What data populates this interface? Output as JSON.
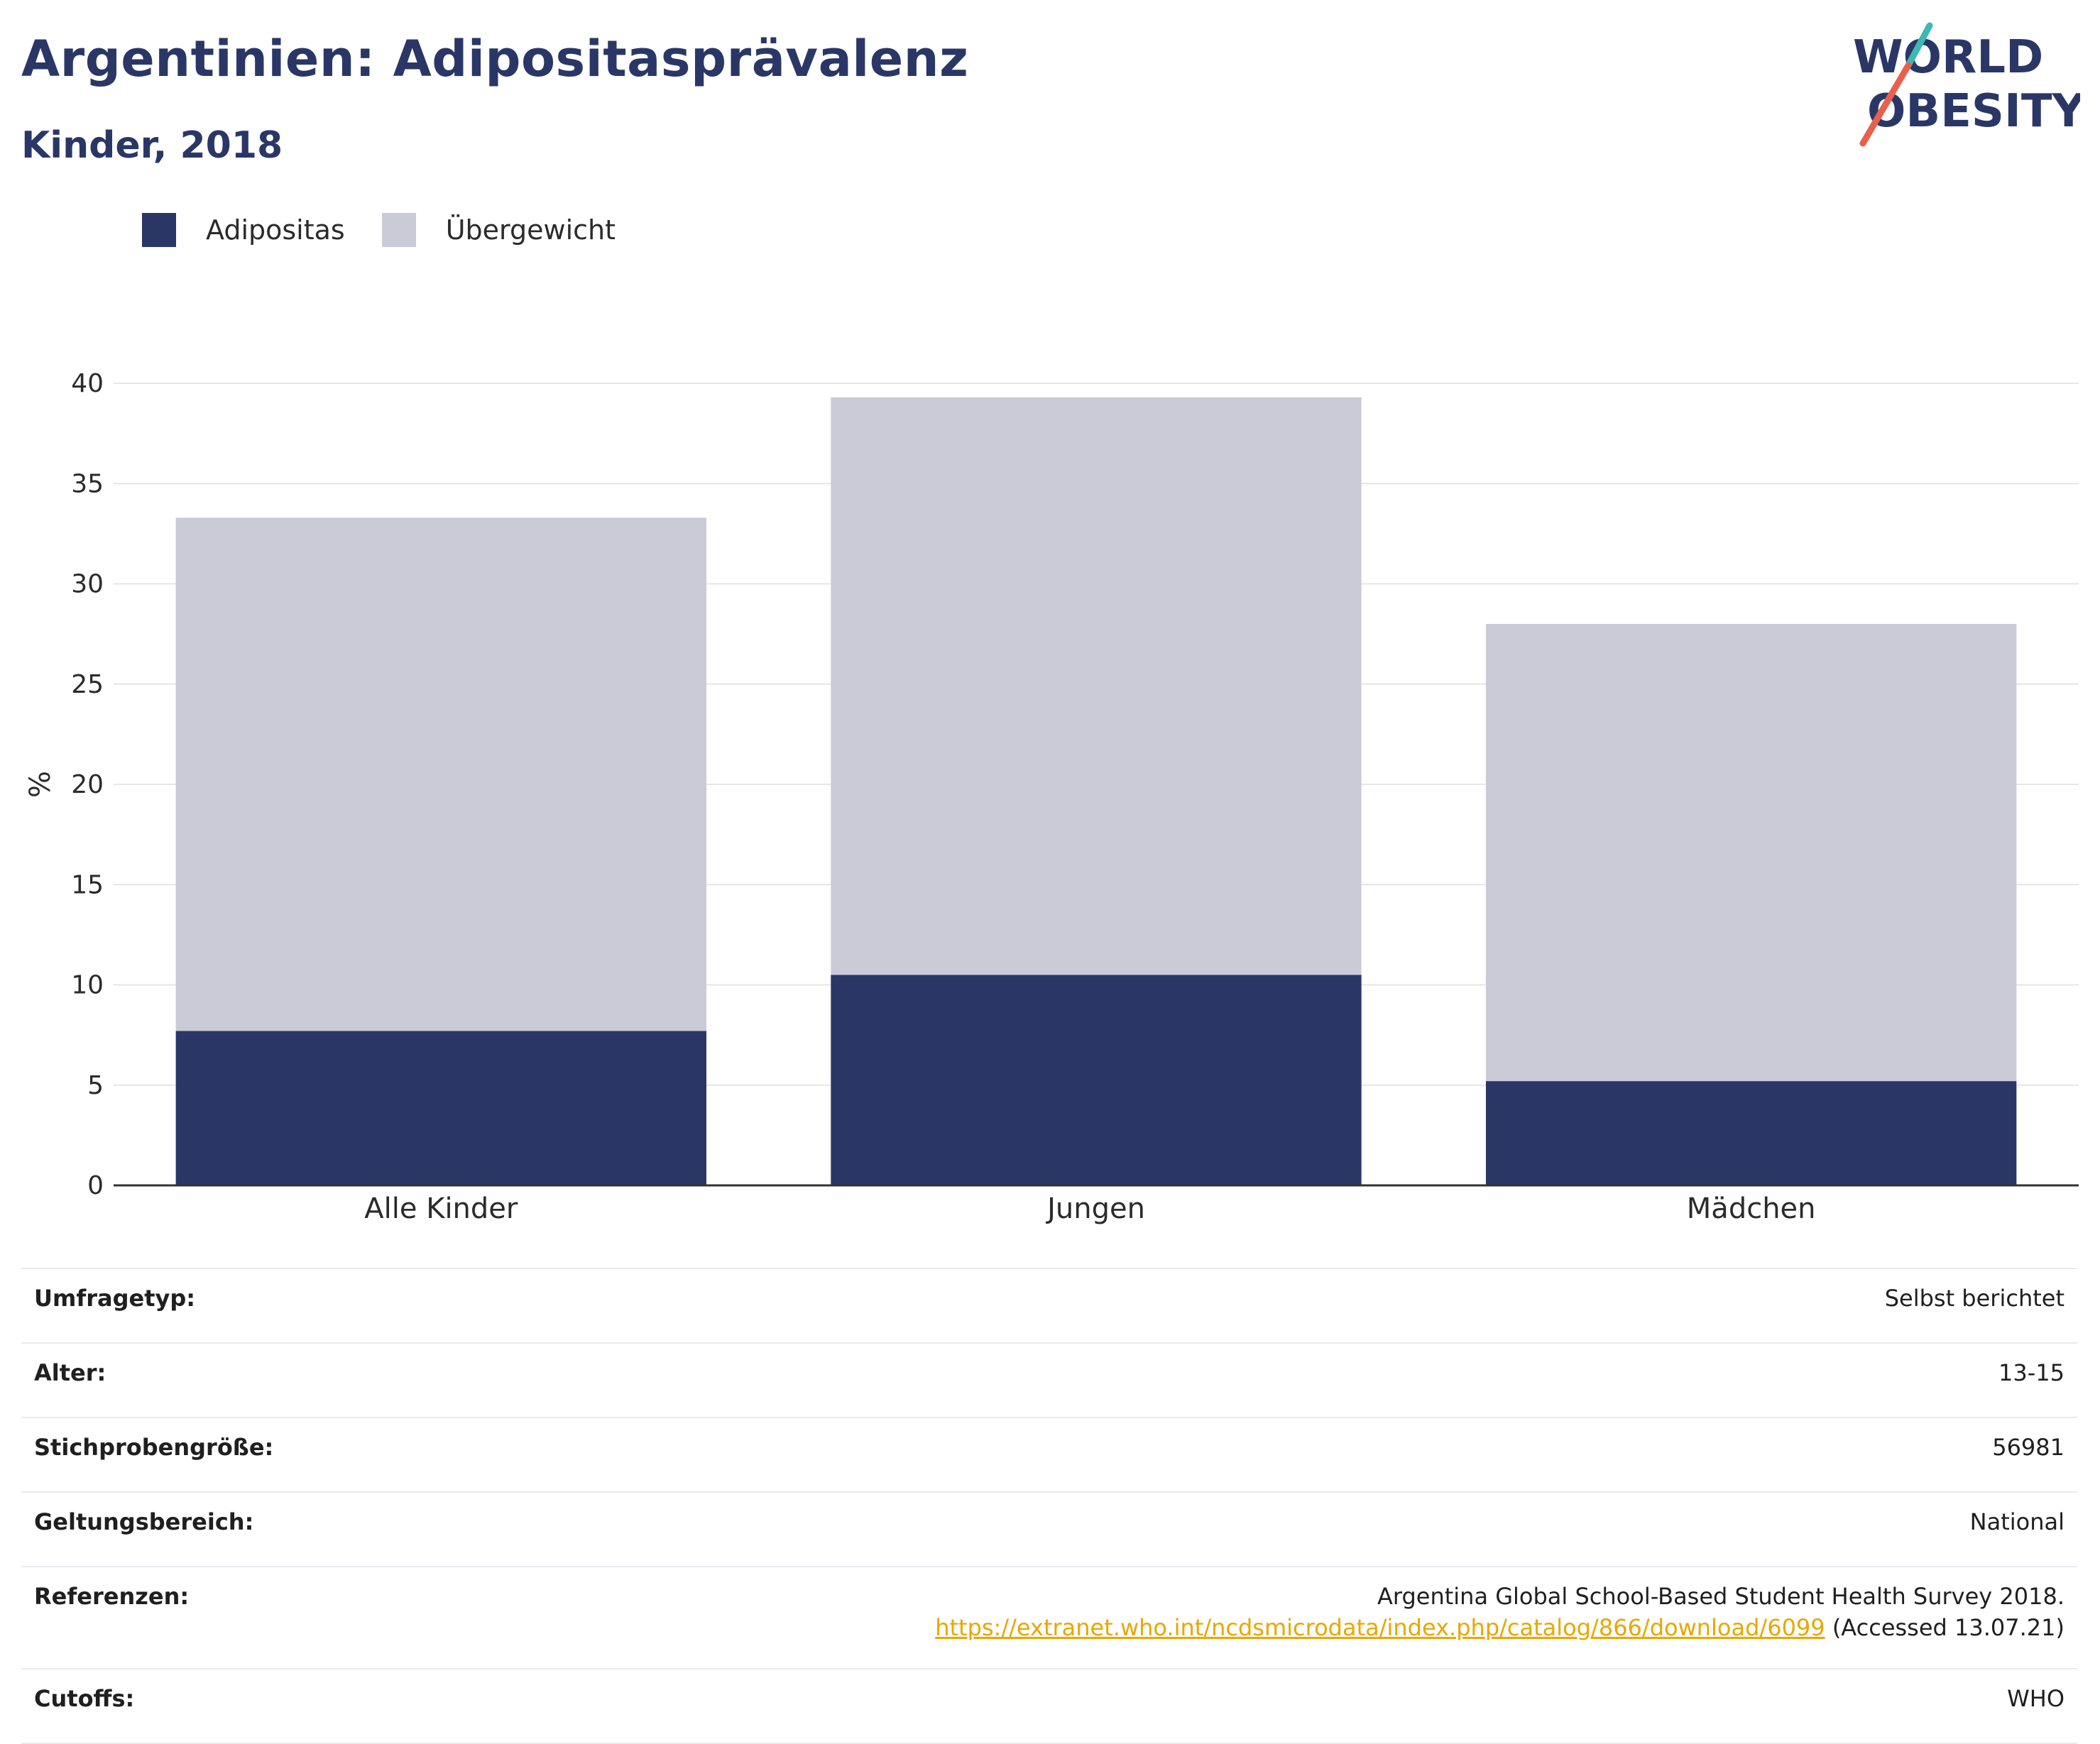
{
  "header": {
    "title": "Argentinien: Adipositasprävalenz",
    "subtitle": "Kinder, 2018"
  },
  "logo": {
    "line1": "WORLD",
    "line2": "OBESITY"
  },
  "legend": [
    {
      "label": "Adipositas",
      "color": "#2a3766"
    },
    {
      "label": "Übergewicht",
      "color": "#cacbd7"
    }
  ],
  "chart_data": {
    "type": "bar",
    "stacked": true,
    "categories": [
      "Alle Kinder",
      "Jungen",
      "Mädchen"
    ],
    "series": [
      {
        "name": "Adipositas",
        "values": [
          7.7,
          10.5,
          5.2
        ],
        "color": "#2a3766"
      },
      {
        "name": "Übergewicht",
        "values": [
          25.6,
          28.8,
          22.8
        ],
        "color": "#cacbd7"
      }
    ],
    "ylabel": "%",
    "ylim": [
      0,
      40
    ],
    "yticks": [
      0,
      5,
      10,
      15,
      20,
      25,
      30,
      35,
      40
    ],
    "grid": true,
    "legend_position": "top-left"
  },
  "info": [
    {
      "key": "Umfragetyp:",
      "value": "Selbst berichtet"
    },
    {
      "key": "Alter:",
      "value": "13-15"
    },
    {
      "key": "Stichprobengröße:",
      "value": "56981"
    },
    {
      "key": "Geltungsbereich:",
      "value": "National"
    },
    {
      "key": "Referenzen:",
      "value": "Argentina Global School-Based Student Health Survey 2018.",
      "link": "https://extranet.who.int/ncdsmicrodata/index.php/catalog/866/download/6099",
      "suffix": " (Accessed 13.07.21)"
    },
    {
      "key": "Cutoffs:",
      "value": "WHO"
    }
  ]
}
